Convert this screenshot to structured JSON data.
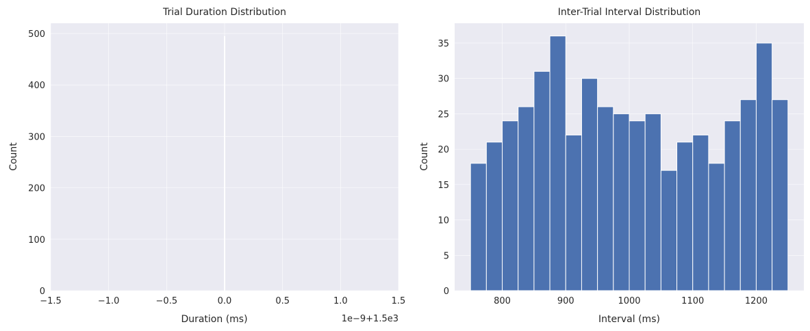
{
  "chart_data": [
    {
      "type": "bar",
      "title": "Trial Duration Distribution",
      "xlabel": "Duration (ms)",
      "ylabel": "Count",
      "offset_label": "1e−9+1.5e3",
      "xlim": [
        -1.5,
        1.5
      ],
      "ylim": [
        0,
        520
      ],
      "x_ticks": [
        -1.5,
        -1.0,
        -0.5,
        0.0,
        0.5,
        1.0,
        1.5
      ],
      "x_tick_labels": [
        "−1.5",
        "−1.0",
        "−0.5",
        "0.0",
        "0.5",
        "1.0",
        "1.5"
      ],
      "y_ticks": [
        0,
        100,
        200,
        300,
        400,
        500
      ],
      "y_tick_labels": [
        "0",
        "100",
        "200",
        "300",
        "400",
        "500"
      ],
      "bins": [
        {
          "x": 0.0,
          "count": 495
        }
      ],
      "grid": true
    },
    {
      "type": "bar",
      "title": "Inter-Trial Interval Distribution",
      "xlabel": "Interval (ms)",
      "ylabel": "Count",
      "xlim": [
        725,
        1275
      ],
      "ylim": [
        0,
        37.8
      ],
      "x_ticks": [
        800,
        900,
        1000,
        1100,
        1200
      ],
      "x_tick_labels": [
        "800",
        "900",
        "1000",
        "1100",
        "1200"
      ],
      "y_ticks": [
        0,
        5,
        10,
        15,
        20,
        25,
        30,
        35
      ],
      "y_tick_labels": [
        "0",
        "5",
        "10",
        "15",
        "20",
        "25",
        "30",
        "35"
      ],
      "bin_edges": [
        750,
        775,
        800,
        825,
        850,
        875,
        900,
        925,
        950,
        975,
        1000,
        1025,
        1050,
        1075,
        1100,
        1125,
        1150,
        1175,
        1200,
        1225,
        1250
      ],
      "counts": [
        18,
        21,
        24,
        26,
        31,
        36,
        22,
        30,
        26,
        25,
        24,
        25,
        17,
        21,
        22,
        18,
        24,
        27,
        35,
        27
      ],
      "bar_color": "#4c72b0",
      "grid": true
    }
  ],
  "colors": {
    "plot_bg": "#eaeaf2",
    "bar": "#4c72b0",
    "grid": "#ffffff"
  }
}
